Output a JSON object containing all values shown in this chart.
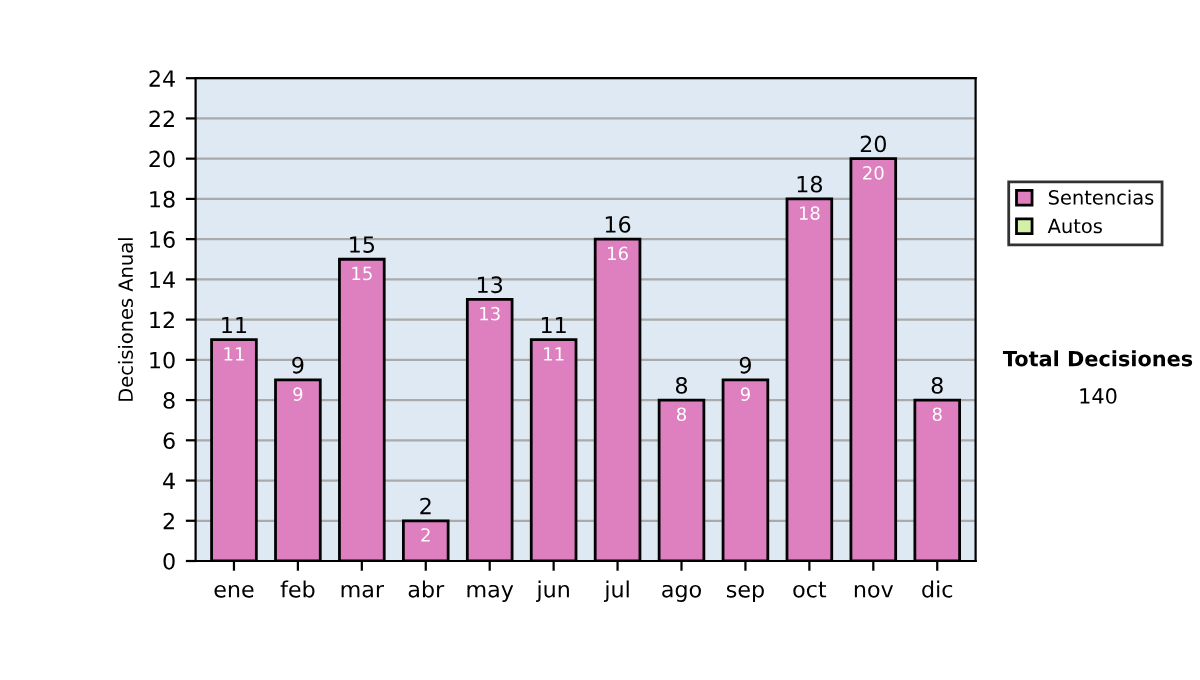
{
  "chart_data": {
    "type": "bar",
    "ylabel": "Decisiones Anual",
    "categories": [
      "ene",
      "feb",
      "mar",
      "abr",
      "may",
      "jun",
      "jul",
      "ago",
      "sep",
      "oct",
      "nov",
      "dic"
    ],
    "series": [
      {
        "name": "Sentencias",
        "color": "#de7fc0",
        "values": [
          11,
          9,
          15,
          2,
          13,
          11,
          16,
          8,
          9,
          18,
          20,
          8
        ],
        "value_labels": [
          "11",
          "9",
          "15",
          "2",
          "13",
          "11",
          "16",
          "8",
          "9",
          "18",
          "20",
          "8"
        ]
      },
      {
        "name": "Autos",
        "color": "#d4f0a8",
        "values": [
          0,
          0,
          0,
          0,
          0,
          0,
          0,
          0,
          0,
          0,
          0,
          0
        ]
      }
    ],
    "stacked": true,
    "totals": [
      "11",
      "9",
      "15",
      "2",
      "13",
      "11",
      "16",
      "8",
      "9",
      "18",
      "20",
      "8"
    ],
    "ylim": [
      0,
      24
    ],
    "yticks": [
      0,
      2,
      4,
      6,
      8,
      10,
      12,
      14,
      16,
      18,
      20,
      22,
      24
    ],
    "grid": "y",
    "legend": "right",
    "annotations": [
      "Total Decisiones",
      "140"
    ]
  }
}
